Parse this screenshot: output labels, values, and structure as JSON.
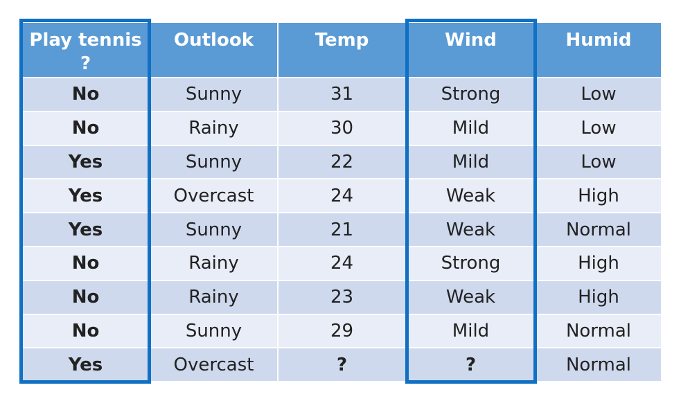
{
  "table": {
    "header": [
      "Play tennis ?",
      "Outlook",
      "Temp",
      "Wind",
      "Humid"
    ],
    "rows": [
      [
        "No",
        "Sunny",
        31,
        "Strong",
        "Low"
      ],
      [
        "No",
        "Rainy",
        30,
        "Mild",
        "Low"
      ],
      [
        "Yes",
        "Sunny",
        22,
        "Mild",
        "Low"
      ],
      [
        "Yes",
        "Overcast",
        24,
        "Weak",
        "High"
      ],
      [
        "Yes",
        "Sunny",
        21,
        "Weak",
        "Normal"
      ],
      [
        "No",
        "Rainy",
        24,
        "Strong",
        "High"
      ],
      [
        "No",
        "Rainy",
        23,
        "Weak",
        "High"
      ],
      [
        "No",
        "Sunny",
        29,
        "Mild",
        "Normal"
      ],
      [
        "Yes",
        "Overcast",
        "?",
        "?",
        "Normal"
      ]
    ]
  }
}
